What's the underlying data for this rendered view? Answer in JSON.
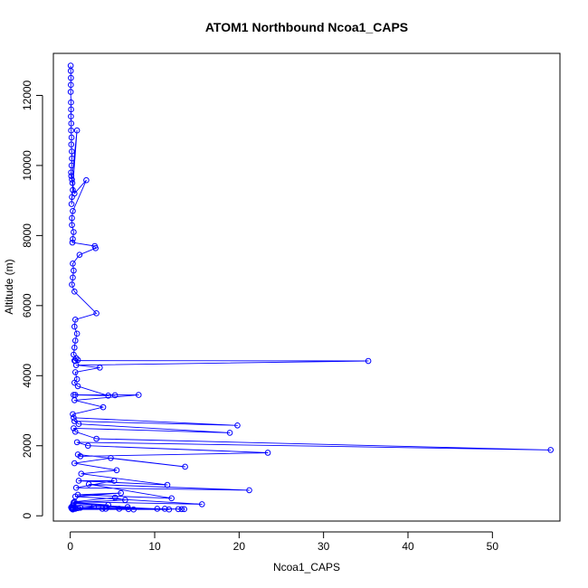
{
  "chart_data": {
    "type": "line",
    "title": "ATOM1 Northbound Ncoa1_CAPS",
    "xlabel": "Ncoa1_CAPS",
    "ylabel": "Altitude (m)",
    "xlim": [
      -2,
      58
    ],
    "ylim": [
      -150,
      13200
    ],
    "x_ticks": [
      0,
      10,
      20,
      30,
      40,
      50
    ],
    "y_ticks": [
      0,
      2000,
      4000,
      6000,
      8000,
      10000,
      12000
    ],
    "grid": false,
    "legend": "none",
    "marker": "open-circle",
    "line_color": "#0000ff",
    "series": [
      {
        "x": [
          0.05,
          0.06,
          0.08,
          0.07,
          0.05,
          0.09,
          0.1,
          0.08,
          0.12,
          0.1,
          0.15,
          0.12,
          0.18,
          0.2,
          0.15,
          0.1,
          0.12,
          0.25,
          0.3,
          0.2,
          0.15,
          0.8,
          0.2,
          0.5,
          1.9,
          0.3,
          0.2,
          0.2,
          0.4,
          0.3,
          0.25,
          2.9,
          3.0,
          1.1,
          0.3,
          0.4,
          0.3,
          0.2,
          0.5,
          3.1,
          0.6,
          0.5,
          0.8,
          0.6,
          0.5,
          0.4,
          0.7,
          0.9,
          0.6,
          0.5,
          35.3,
          0.7,
          3.5,
          0.6,
          0.8,
          0.5,
          0.9,
          4.5,
          0.4,
          5.3,
          0.6,
          8.1,
          0.5,
          3.9,
          0.3,
          0.4,
          19.8,
          0.5,
          1.0,
          18.9,
          0.4,
          0.6,
          3.1,
          56.9,
          0.8,
          2.1,
          23.4,
          1.2,
          0.9,
          13.6,
          4.8,
          0.5,
          5.5,
          1.3,
          11.5,
          1.0,
          5.2,
          0.7,
          21.2,
          2.2,
          12.0,
          0.9,
          6.0,
          0.6,
          15.6,
          0.5,
          5.3,
          6.5,
          0.4,
          4.5,
          0.4,
          6.8,
          0.3,
          10.3,
          0.9,
          2.8,
          0.3,
          11.7,
          0.4,
          7.5,
          0.6,
          13.5,
          0.2,
          3.8,
          0.3,
          11.2,
          1.2,
          5.8,
          0.2,
          12.8,
          0.6,
          13.2,
          0.1,
          4.2,
          0.3,
          6.9,
          0.2
        ],
        "y": [
          12850,
          12700,
          12500,
          12300,
          12100,
          11800,
          11600,
          11400,
          11200,
          11000,
          10800,
          10600,
          10400,
          10200,
          10000,
          9800,
          9700,
          9500,
          9300,
          9100,
          8900,
          11000,
          9600,
          9200,
          9580,
          8700,
          8500,
          8300,
          8100,
          7900,
          7800,
          7700,
          7640,
          7450,
          7200,
          7000,
          6800,
          6600,
          6400,
          5780,
          5600,
          5400,
          5200,
          5000,
          4800,
          4600,
          4500,
          4450,
          4420,
          4430,
          4420,
          4300,
          4230,
          4100,
          3900,
          3800,
          3700,
          3430,
          3450,
          3440,
          3450,
          3450,
          3300,
          3100,
          2900,
          2800,
          2580,
          2700,
          2620,
          2370,
          2500,
          2400,
          2200,
          1880,
          2100,
          2000,
          1800,
          1700,
          1750,
          1400,
          1650,
          1500,
          1300,
          1200,
          880,
          1000,
          1000,
          800,
          730,
          900,
          500,
          600,
          650,
          550,
          330,
          400,
          520,
          450,
          380,
          310,
          350,
          250,
          300,
          200,
          220,
          260,
          180,
          180,
          200,
          180,
          220,
          190,
          240,
          200,
          210,
          200,
          230,
          200,
          220,
          190,
          200,
          190,
          240,
          200,
          210,
          190,
          200
        ]
      }
    ]
  }
}
